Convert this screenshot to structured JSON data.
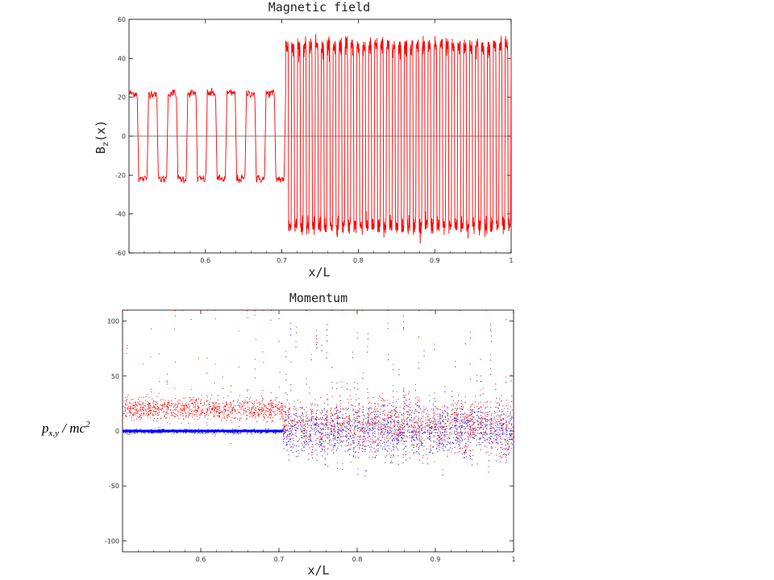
{
  "chart_data": [
    {
      "type": "line",
      "title": "Magnetic field",
      "xlabel": "x/L",
      "ylabel_main": "B",
      "ylabel_sub": "z",
      "ylabel_tail": "(x)",
      "xlim": [
        0.5,
        1.0
      ],
      "ylim": [
        -60,
        60
      ],
      "xticks": [
        0.6,
        0.7,
        0.8,
        0.9,
        1
      ],
      "xtick_labels": [
        "0.6",
        "0.7",
        "0.8",
        "0.9",
        "1"
      ],
      "yticks": [
        -60,
        -40,
        -20,
        0,
        20,
        40,
        60
      ],
      "ytick_labels": [
        "-60",
        "-40",
        "-20",
        "0",
        "20",
        "40",
        "60"
      ],
      "series": [
        {
          "color": "#ff0000",
          "segments": [
            {
              "x_start": 0.5,
              "x_end": 0.705,
              "amplitude": 22,
              "oscillations": 8
            },
            {
              "x_start": 0.705,
              "x_end": 1.0,
              "amplitude": 46,
              "oscillations": 38
            }
          ]
        }
      ],
      "zero_line": true,
      "grid": false
    },
    {
      "type": "scatter",
      "title": "Momentum",
      "xlabel": "x/L",
      "ylabel_parts": [
        "p",
        "x,y",
        " / mc",
        "2"
      ],
      "xlim": [
        0.5,
        1.0
      ],
      "ylim": [
        -110,
        110
      ],
      "xticks": [
        0.6,
        0.7,
        0.8,
        0.9,
        1
      ],
      "xtick_labels": [
        "0.6",
        "0.7",
        "0.8",
        "0.9",
        "1"
      ],
      "yticks": [
        -100,
        -50,
        0,
        50,
        100
      ],
      "ytick_labels": [
        "-100",
        "-50",
        "0",
        "50",
        "100"
      ],
      "series": [
        {
          "color": "#ff0000",
          "regions": [
            {
              "x_start": 0.5,
              "x_end": 0.705,
              "center": 20,
              "spread": 8,
              "spike_count": 20,
              "spike_max": 100
            },
            {
              "x_start": 0.705,
              "x_end": 1.0,
              "center": 5,
              "spread": 20,
              "spike_count": 45,
              "spike_max": 105
            }
          ]
        },
        {
          "color": "#0000ff",
          "regions": [
            {
              "x_start": 0.5,
              "x_end": 0.705,
              "center": 0,
              "spread": 1.5
            },
            {
              "x_start": 0.705,
              "x_end": 1.0,
              "center": 0,
              "spread": 20,
              "spike_count": 45,
              "spike_max": 105
            }
          ]
        }
      ],
      "grid": false
    }
  ]
}
